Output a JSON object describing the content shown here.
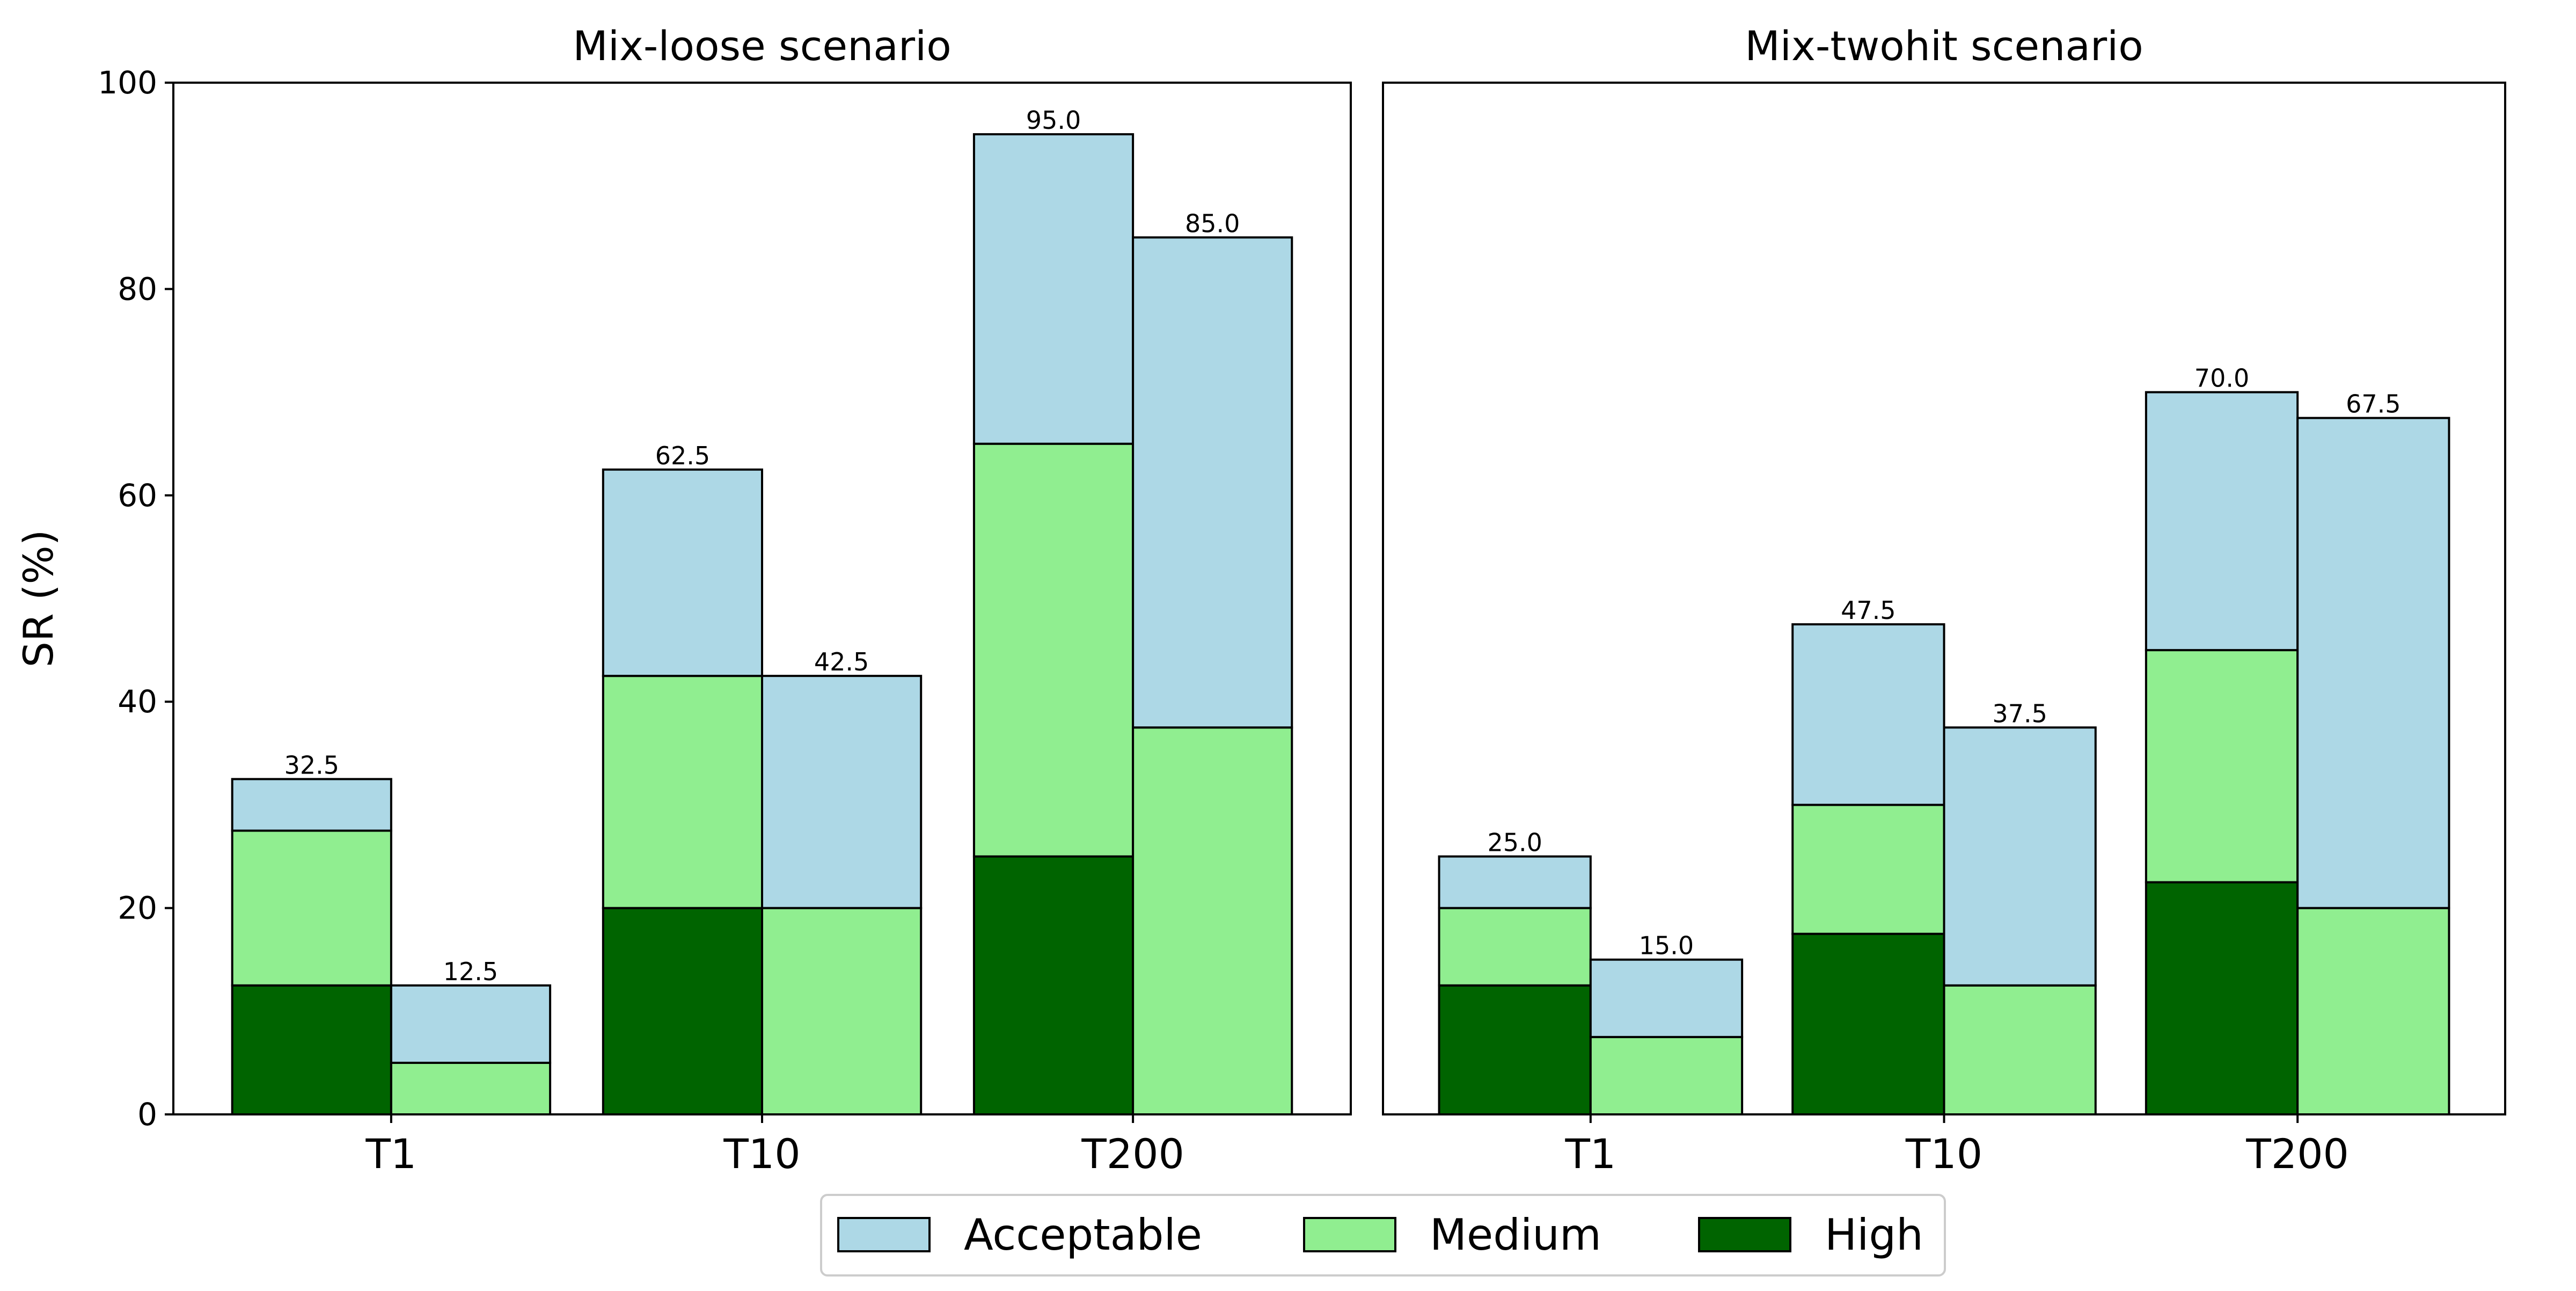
{
  "chart_data": {
    "type": "bar",
    "stacked": true,
    "ylabel": "SR (%)",
    "ylim": [
      0,
      100
    ],
    "yticks": [
      "0",
      "20",
      "40",
      "60",
      "80",
      "100"
    ],
    "legend": {
      "placement": "bottom-center",
      "entries": [
        {
          "label": "Acceptable",
          "color": "#add8e6"
        },
        {
          "label": "Medium",
          "color": "#90ee90"
        },
        {
          "label": "High",
          "color": "#006400"
        }
      ]
    },
    "panels": [
      {
        "title": "Mix-loose scenario",
        "categories": [
          "T1",
          "T10",
          "T200"
        ],
        "bars": [
          {
            "category": "T1",
            "high": 12.5,
            "medium": 15.0,
            "acceptable": 5.0,
            "total_label": "32.5"
          },
          {
            "category": "T1",
            "high": 0,
            "medium": 5.0,
            "acceptable": 7.5,
            "total_label": "12.5"
          },
          {
            "category": "T10",
            "high": 20.0,
            "medium": 22.5,
            "acceptable": 20.0,
            "total_label": "62.5"
          },
          {
            "category": "T10",
            "high": 0,
            "medium": 20.0,
            "acceptable": 22.5,
            "total_label": "42.5"
          },
          {
            "category": "T200",
            "high": 25.0,
            "medium": 40.0,
            "acceptable": 30.0,
            "total_label": "95.0"
          },
          {
            "category": "T200",
            "high": 0,
            "medium": 37.5,
            "acceptable": 47.5,
            "total_label": "85.0"
          }
        ]
      },
      {
        "title": "Mix-twohit scenario",
        "categories": [
          "T1",
          "T10",
          "T200"
        ],
        "bars": [
          {
            "category": "T1",
            "high": 12.5,
            "medium": 7.5,
            "acceptable": 5.0,
            "total_label": "25.0"
          },
          {
            "category": "T1",
            "high": 0,
            "medium": 7.5,
            "acceptable": 7.5,
            "total_label": "15.0"
          },
          {
            "category": "T10",
            "high": 17.5,
            "medium": 12.5,
            "acceptable": 17.5,
            "total_label": "47.5"
          },
          {
            "category": "T10",
            "high": 0,
            "medium": 12.5,
            "acceptable": 25.0,
            "total_label": "37.5"
          },
          {
            "category": "T200",
            "high": 22.5,
            "medium": 22.5,
            "acceptable": 25.0,
            "total_label": "70.0"
          },
          {
            "category": "T200",
            "high": 0,
            "medium": 20.0,
            "acceptable": 47.5,
            "total_label": "67.5"
          }
        ]
      }
    ]
  }
}
